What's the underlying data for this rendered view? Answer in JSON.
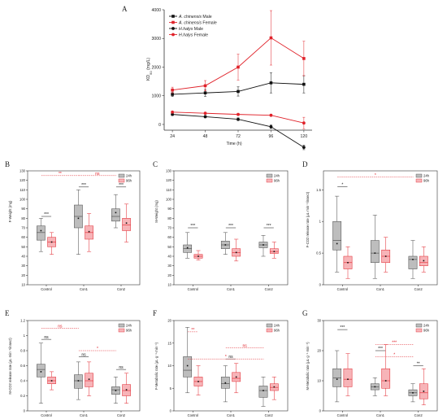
{
  "chart_data": [
    {
      "type": "line",
      "panel": "A",
      "ylabel": "KD50 (mg/L)",
      "ylabel_main": "KD",
      "ylabel_sub": "50",
      "ylabel_unit": " (mg/L)",
      "xlabel": "Time (h)",
      "x": [
        24,
        48,
        72,
        96,
        120
      ],
      "ylim": [
        -200,
        4000
      ],
      "yticks": [
        0,
        1000,
        2000,
        3000,
        4000
      ],
      "series": [
        {
          "name": "A. chinensis Male",
          "italic": "A. chinensis",
          "suffix": " Male",
          "color": "#111111",
          "marker": "square",
          "values": [
            1050,
            1100,
            1150,
            1450,
            1400
          ],
          "err": [
            80,
            120,
            160,
            350,
            300
          ]
        },
        {
          "name": "A. chinensis Female",
          "italic": "A. chinensis",
          "suffix": " Female",
          "color": "#e0222a",
          "marker": "square",
          "values": [
            1200,
            1350,
            2000,
            3020,
            2300
          ],
          "err": [
            100,
            180,
            450,
            950,
            600
          ]
        },
        {
          "name": "H.halys Male",
          "italic": "H.halys",
          "suffix": " Male",
          "color": "#111111",
          "marker": "circle",
          "values": [
            350,
            270,
            180,
            -80,
            -800
          ],
          "err": [
            40,
            40,
            50,
            60,
            80
          ]
        },
        {
          "name": "H.halys Female",
          "italic": "H.halys",
          "suffix": " Female",
          "color": "#e0222a",
          "marker": "circle",
          "values": [
            430,
            390,
            350,
            320,
            50
          ],
          "err": [
            30,
            30,
            40,
            40,
            200
          ]
        }
      ]
    },
    {
      "type": "box",
      "panel": "B",
      "ylabel": "F-Weight (mg)",
      "ylim": [
        10,
        130
      ],
      "yticks": [
        10,
        20,
        30,
        40,
        50,
        60,
        70,
        80,
        90,
        100,
        110,
        120,
        130
      ],
      "categories": [
        "Control",
        "Con1",
        "Con2"
      ],
      "legend": [
        "24h",
        "96h"
      ],
      "boxes": [
        [
          {
            "min": 45,
            "q1": 57,
            "med": 65,
            "q3": 72,
            "max": 80,
            "mean": 67
          },
          {
            "min": 42,
            "q1": 50,
            "med": 55,
            "q3": 60,
            "max": 65,
            "mean": 55
          }
        ],
        [
          {
            "min": 42,
            "q1": 70,
            "med": 82,
            "q3": 94,
            "max": 110,
            "mean": 80
          },
          {
            "min": 45,
            "q1": 58,
            "med": 65,
            "q3": 72,
            "max": 85,
            "mean": 66
          }
        ],
        [
          {
            "min": 70,
            "q1": 77,
            "med": 82,
            "q3": 90,
            "max": 105,
            "mean": 86
          },
          {
            "min": 55,
            "q1": 67,
            "med": 73,
            "q3": 80,
            "max": 95,
            "mean": 75
          }
        ]
      ],
      "sig": [
        {
          "label": "***",
          "color": "black",
          "from": 0,
          "to": 0,
          "y": 82
        },
        {
          "label": "***",
          "color": "black",
          "from": 1,
          "to": 1,
          "y": 113
        },
        {
          "label": "***",
          "color": "black",
          "from": 2,
          "to": 2,
          "y": 113
        },
        {
          "label": "**",
          "color": "red",
          "from": 0,
          "to": 1,
          "y": 125
        },
        {
          "label": "ns",
          "color": "red",
          "from": 1,
          "to": 2,
          "y": 125
        }
      ]
    },
    {
      "type": "box",
      "panel": "C",
      "ylabel": "M-Weight (mg)",
      "ylim": [
        10,
        130
      ],
      "yticks": [
        10,
        20,
        30,
        40,
        50,
        60,
        70,
        80,
        90,
        100,
        110,
        120,
        130
      ],
      "categories": [
        "Control",
        "Con1",
        "Con2"
      ],
      "legend": [
        "24h",
        "96h"
      ],
      "boxes": [
        [
          {
            "min": 38,
            "q1": 44,
            "med": 48,
            "q3": 52,
            "max": 65,
            "mean": 49
          },
          {
            "min": 36,
            "q1": 38,
            "med": 40,
            "q3": 42,
            "max": 46,
            "mean": 40
          }
        ],
        [
          {
            "min": 42,
            "q1": 48,
            "med": 52,
            "q3": 56,
            "max": 65,
            "mean": 52
          },
          {
            "min": 35,
            "q1": 40,
            "med": 44,
            "q3": 48,
            "max": 58,
            "mean": 44
          }
        ],
        [
          {
            "min": 40,
            "q1": 49,
            "med": 52,
            "q3": 55,
            "max": 62,
            "mean": 52
          },
          {
            "min": 38,
            "q1": 43,
            "med": 45,
            "q3": 48,
            "max": 55,
            "mean": 45
          }
        ]
      ],
      "sig": [
        {
          "label": "***",
          "color": "black",
          "from": 0,
          "to": 0,
          "y": 70
        },
        {
          "label": "***",
          "color": "black",
          "from": 1,
          "to": 1,
          "y": 70
        },
        {
          "label": "***",
          "color": "black",
          "from": 2,
          "to": 2,
          "y": 70
        }
      ]
    },
    {
      "type": "box",
      "panel": "D",
      "ylabel": "F-CO2 release rate (μL·min⁻¹/insect)",
      "ylim": [
        0,
        1.8
      ],
      "yticks": [
        0,
        0.5,
        1.0,
        1.5
      ],
      "categories": [
        "Control",
        "Con1",
        "Con2"
      ],
      "legend": [
        "24h",
        "96h"
      ],
      "boxes": [
        [
          {
            "min": 0.2,
            "q1": 0.55,
            "med": 0.7,
            "q3": 1.0,
            "max": 1.4,
            "mean": 0.65
          },
          {
            "min": 0.1,
            "q1": 0.25,
            "med": 0.35,
            "q3": 0.45,
            "max": 0.6,
            "mean": 0.35
          }
        ],
        [
          {
            "min": 0.1,
            "q1": 0.35,
            "med": 0.5,
            "q3": 0.7,
            "max": 1.1,
            "mean": 0.5
          },
          {
            "min": 0.2,
            "q1": 0.35,
            "med": 0.45,
            "q3": 0.55,
            "max": 0.75,
            "mean": 0.45
          }
        ],
        [
          {
            "min": 0.1,
            "q1": 0.25,
            "med": 0.4,
            "q3": 0.45,
            "max": 0.7,
            "mean": 0.4
          },
          {
            "min": 0.2,
            "q1": 0.3,
            "med": 0.35,
            "q3": 0.45,
            "max": 0.6,
            "mean": 0.38
          }
        ]
      ],
      "sig": [
        {
          "label": "*",
          "color": "black",
          "from": 0,
          "to": 0,
          "y": 1.55
        },
        {
          "label": "*",
          "color": "red",
          "from": 0,
          "to": 2,
          "y": 1.7
        }
      ]
    },
    {
      "type": "box",
      "panel": "E",
      "ylabel": "M-CO2 release rate (μL·min⁻¹/insect)",
      "ylim": [
        0,
        1.2
      ],
      "yticks": [
        0,
        0.2,
        0.4,
        0.6,
        0.8,
        1.0,
        1.2
      ],
      "categories": [
        "Control",
        "Con1",
        "Con2"
      ],
      "legend": [
        "24h",
        "96h"
      ],
      "boxes": [
        [
          {
            "min": 0.1,
            "q1": 0.45,
            "med": 0.55,
            "q3": 0.62,
            "max": 0.9,
            "mean": 0.52
          },
          {
            "min": 0.28,
            "q1": 0.36,
            "med": 0.4,
            "q3": 0.45,
            "max": 0.52,
            "mean": 0.4
          }
        ],
        [
          {
            "min": 0.15,
            "q1": 0.3,
            "med": 0.4,
            "q3": 0.48,
            "max": 0.65,
            "mean": 0.4
          },
          {
            "min": 0.2,
            "q1": 0.32,
            "med": 0.4,
            "q3": 0.5,
            "max": 0.65,
            "mean": 0.42
          }
        ],
        [
          {
            "min": 0.1,
            "q1": 0.22,
            "med": 0.28,
            "q3": 0.32,
            "max": 0.45,
            "mean": 0.27
          },
          {
            "min": 0.1,
            "q1": 0.2,
            "med": 0.27,
            "q3": 0.35,
            "max": 0.5,
            "mean": 0.28
          }
        ]
      ],
      "sig": [
        {
          "label": "ns",
          "color": "black",
          "from": 0,
          "to": 0,
          "y": 0.95
        },
        {
          "label": "ns",
          "color": "red",
          "from": 0,
          "to": 1,
          "y": 1.1
        },
        {
          "label": "ns",
          "color": "black",
          "from": 1,
          "to": 1,
          "y": 0.72
        },
        {
          "label": "*",
          "color": "red",
          "from": 1,
          "to": 2,
          "y": 0.8
        },
        {
          "label": "ns",
          "color": "black",
          "from": 2,
          "to": 2,
          "y": 0.55
        }
      ]
    },
    {
      "type": "box",
      "panel": "F",
      "ylabel": "F-Metabolic rate (μL·g⁻¹·min⁻¹)",
      "ylim": [
        0,
        20
      ],
      "yticks": [
        0,
        5,
        10,
        15,
        20
      ],
      "categories": [
        "Control",
        "Con1",
        "Con2"
      ],
      "legend": [
        "24h",
        "96h"
      ],
      "boxes": [
        [
          {
            "min": 4,
            "q1": 7.5,
            "med": 9,
            "q3": 12,
            "max": 18.5,
            "mean": 10
          },
          {
            "min": 3.5,
            "q1": 5.5,
            "med": 6.5,
            "q3": 7.5,
            "max": 10,
            "mean": 6.5
          }
        ],
        [
          {
            "min": 2,
            "q1": 5,
            "med": 6,
            "q3": 7.5,
            "max": 10,
            "mean": 6.2
          },
          {
            "min": 4,
            "q1": 6.5,
            "med": 7.2,
            "q3": 8.5,
            "max": 10.5,
            "mean": 7.5
          }
        ],
        [
          {
            "min": 1,
            "q1": 3,
            "med": 4.5,
            "q3": 5.5,
            "max": 7.5,
            "mean": 4.5
          },
          {
            "min": 2.5,
            "q1": 4.5,
            "med": 5.2,
            "q3": 6,
            "max": 7.5,
            "mean": 5.3
          }
        ]
      ],
      "sig": [
        {
          "label": "**",
          "color": "red",
          "from": 0,
          "to": 0,
          "y": 17.5
        },
        {
          "label": "ns",
          "color": "red",
          "from": 1,
          "to": 2,
          "y": 14
        },
        {
          "label": "ns",
          "color": "black",
          "from": 1,
          "to": 1,
          "y": 11.5
        },
        {
          "label": "*",
          "color": "red",
          "from": 0,
          "to": 2,
          "y": 11.5
        }
      ]
    },
    {
      "type": "box",
      "panel": "G",
      "ylabel": "M-Metabolic rate (μL·g⁻¹·min⁻¹)",
      "ylim": [
        0,
        30
      ],
      "yticks": [
        0,
        10,
        20,
        30
      ],
      "categories": [
        "Control",
        "Con1",
        "Con2"
      ],
      "legend": [
        "24h",
        "96h"
      ],
      "boxes": [
        [
          {
            "min": 3,
            "q1": 8,
            "med": 11,
            "q3": 14,
            "max": 20,
            "mean": 10.5
          },
          {
            "min": 5,
            "q1": 8,
            "med": 10.5,
            "q3": 14,
            "max": 19,
            "mean": 10.5
          }
        ],
        [
          {
            "min": 5,
            "q1": 7,
            "med": 8,
            "q3": 9,
            "max": 11,
            "mean": 8
          },
          {
            "min": 5,
            "q1": 7.5,
            "med": 10,
            "q3": 14,
            "max": 22,
            "mean": 10
          }
        ],
        [
          {
            "min": 3,
            "q1": 5,
            "med": 6,
            "q3": 7,
            "max": 9,
            "mean": 6
          },
          {
            "min": 2,
            "q1": 4,
            "med": 6,
            "q3": 9,
            "max": 14,
            "mean": 6.5
          }
        ]
      ],
      "sig": [
        {
          "label": "***",
          "color": "black",
          "from": 0,
          "to": 0,
          "y": 27
        },
        {
          "label": "***",
          "color": "black",
          "from": 1,
          "to": 1,
          "y": 20
        },
        {
          "label": "***",
          "color": "red",
          "from": 1,
          "to": 2,
          "y": 22
        },
        {
          "label": "*",
          "color": "red",
          "from": 1,
          "to": 2,
          "y": 18
        },
        {
          "label": "**",
          "color": "black",
          "from": 2,
          "to": 2,
          "y": 15
        }
      ]
    }
  ]
}
